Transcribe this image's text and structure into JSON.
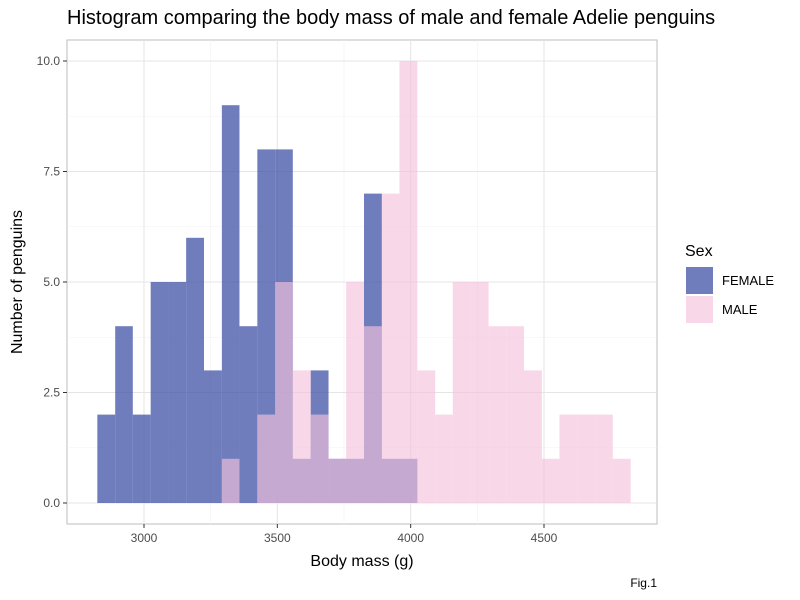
{
  "chart_data": {
    "type": "bar",
    "subtype": "histogram",
    "title": "Histogram comparing the body mass of male and female Adelie penguins",
    "xlabel": "Body mass (g)",
    "ylabel": "Number of penguins",
    "caption": "Fig.1",
    "xlim": [
      2750,
      4850
    ],
    "ylim": [
      0,
      10
    ],
    "x_ticks": [
      3000,
      3500,
      4000,
      4500
    ],
    "x_tick_labels": [
      "3000",
      "3500",
      "4000",
      "4500"
    ],
    "y_ticks": [
      0,
      2.5,
      5,
      7.5,
      10
    ],
    "y_tick_labels": [
      "0.0",
      "2.5",
      "5.0",
      "7.5",
      "10.0"
    ],
    "grid": true,
    "legend": {
      "title": "Sex",
      "position": "right",
      "entries": [
        "FEMALE",
        "MALE"
      ]
    },
    "bin_edges": [
      2825,
      2892,
      2958,
      3025,
      3092,
      3158,
      3225,
      3292,
      3358,
      3425,
      3492,
      3558,
      3625,
      3692,
      3758,
      3825,
      3892,
      3958,
      4025,
      4092,
      4158,
      4225,
      4292,
      4358,
      4425,
      4492,
      4558,
      4625,
      4692,
      4758,
      4825
    ],
    "series": [
      {
        "name": "FEMALE",
        "color": "#3f51a5",
        "opacity": 0.75,
        "values": [
          2,
          4,
          2,
          5,
          5,
          6,
          3,
          9,
          4,
          8,
          8,
          1,
          3,
          1,
          1,
          7,
          1,
          1,
          0,
          0,
          0,
          0,
          0,
          0,
          0,
          0,
          0,
          0,
          0,
          0
        ]
      },
      {
        "name": "MALE",
        "color": "#f4c2dc",
        "opacity": 0.65,
        "values": [
          0,
          0,
          0,
          0,
          0,
          0,
          0,
          1,
          0,
          2,
          5,
          3,
          2,
          1,
          5,
          4,
          7,
          10,
          3,
          2,
          5,
          5,
          4,
          4,
          3,
          1,
          2,
          2,
          2,
          1
        ]
      }
    ]
  }
}
